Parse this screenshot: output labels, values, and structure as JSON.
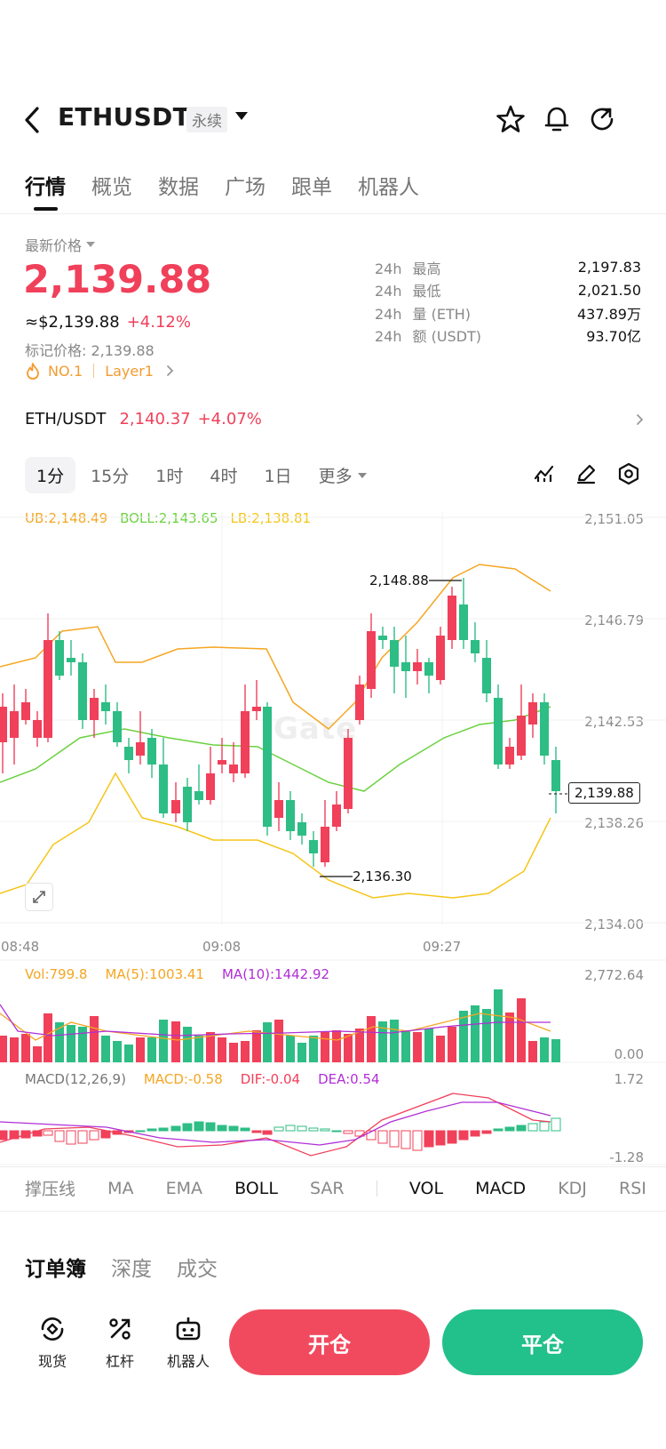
{
  "header": {
    "pair": "ETHUSDT",
    "contract_type": "永续"
  },
  "tabs": [
    "行情",
    "概览",
    "数据",
    "广场",
    "跟单",
    "机器人"
  ],
  "price": {
    "latest_label": "最新价格",
    "last": "2,139.88",
    "approx": "≈$2,139.88",
    "change": "+4.12%",
    "mark_label": "标记价格: 2,139.88",
    "rank": "NO.1",
    "sector": "Layer1"
  },
  "stats": [
    {
      "period": "24h",
      "label": "最高",
      "value": "2,197.83"
    },
    {
      "period": "24h",
      "label": "最低",
      "value": "2,021.50"
    },
    {
      "period": "24h",
      "label": "量 (ETH)",
      "value": "437.89万"
    },
    {
      "period": "24h",
      "label": "额 (USDT)",
      "value": "93.70亿"
    }
  ],
  "spot": {
    "pair": "ETH/USDT",
    "price": "2,140.37",
    "change": "+4.07%"
  },
  "intervals": [
    "1分",
    "15分",
    "1时",
    "4时",
    "1日",
    "更多"
  ],
  "active_interval": 0,
  "boll_legend": {
    "ub": "UB:2,148.49",
    "boll": "BOLL:2,143.65",
    "lb": "LB:2,138.81"
  },
  "price_axis": [
    "2,151.05",
    "2,146.79",
    "2,142.53",
    "2,138.26",
    "2,134.00"
  ],
  "time_axis": [
    "08:48",
    "09:08",
    "09:27"
  ],
  "annotations": {
    "high": "2,148.88",
    "low": "2,136.30",
    "current": "2,139.88"
  },
  "vol_legend": {
    "vol": "Vol:799.8",
    "ma5": "MA(5):1003.41",
    "ma10": "MA(10):1442.92",
    "axis_top": "2,772.64",
    "axis_bottom": "0.00"
  },
  "macd_legend": {
    "name": "MACD(12,26,9)",
    "macd": "MACD:-0.58",
    "dif": "DIF:-0.04",
    "dea": "DEA:0.54",
    "axis_top": "1.72",
    "axis_bottom": "-1.28"
  },
  "indicator_tabs": [
    "撑压线",
    "MA",
    "EMA",
    "BOLL",
    "SAR",
    "VOL",
    "MACD",
    "KDJ",
    "RSI"
  ],
  "active_indicators": [
    "BOLL",
    "VOL",
    "MACD"
  ],
  "book_tabs": [
    "订单簿",
    "深度",
    "成交"
  ],
  "bottom_nav": [
    "现货",
    "杠杆",
    "机器人"
  ],
  "actions": {
    "open": "开仓",
    "close": "平仓"
  },
  "watermark": "Gate",
  "colors": {
    "up": "#2dbd85",
    "down": "#f0405a",
    "ub": "#f5a623",
    "boll": "#6bd13f",
    "lb": "#f5c518",
    "ma10": "#b02fd6"
  }
}
